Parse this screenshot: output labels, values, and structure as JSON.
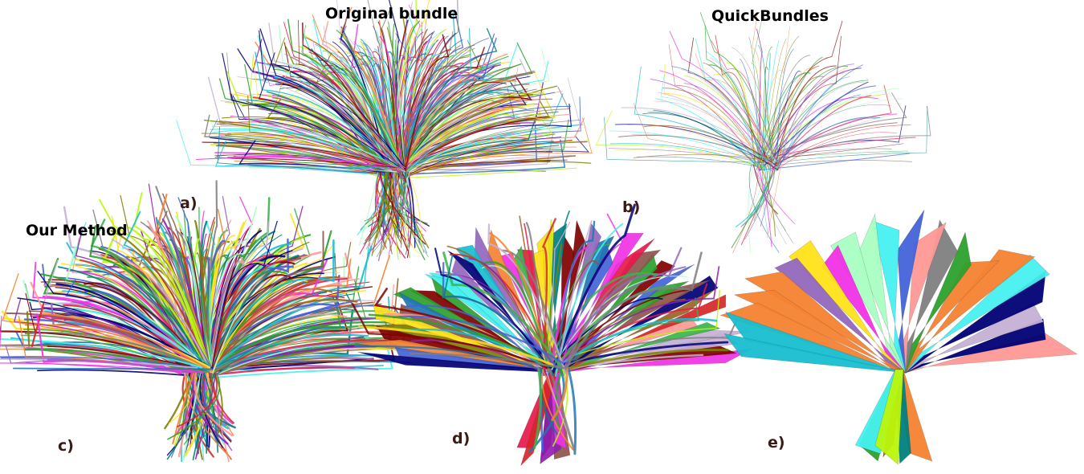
{
  "titles": {
    "original": "Original bundle",
    "quickbundles": "QuickBundles",
    "our_method": "Our Method"
  },
  "panel_labels": {
    "a": "a)",
    "b": "b)",
    "c": "c)",
    "d": "d)",
    "e": "e)"
  },
  "palette": [
    "#e6194b",
    "#3cb44b",
    "#ffe119",
    "#4363d8",
    "#f58231",
    "#911eb4",
    "#46f0f0",
    "#f032e6",
    "#bcf60c",
    "#008080",
    "#9a6324",
    "#800000",
    "#aaffc3",
    "#808000",
    "#000075",
    "#1f77b4",
    "#2ca02c",
    "#d62728",
    "#9467bd",
    "#17becf",
    "#7f7f7f",
    "#ff9896",
    "#c5b0d5",
    "#8c564b"
  ]
}
